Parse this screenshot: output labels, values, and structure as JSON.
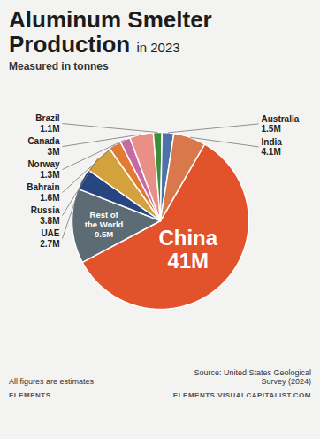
{
  "chart_data": {
    "type": "pie",
    "title": "Aluminum Smelter Production",
    "title_suffix": "in 2023",
    "subtitle": "Measured in tonnes",
    "categories": [
      "China",
      "Rest of the World",
      "UAE",
      "Russia",
      "Bahrain",
      "Norway",
      "Canada",
      "Brazil",
      "Australia",
      "India"
    ],
    "values": [
      41000000,
      9500000,
      2700000,
      3800000,
      1600000,
      1300000,
      3000000,
      1100000,
      1500000,
      4100000
    ],
    "value_labels": [
      "41M",
      "9.5M",
      "2.7M",
      "3.8M",
      "1.6M",
      "1.3M",
      "3M",
      "1.1M",
      "1.5M",
      "4.1M"
    ],
    "colors": [
      "#e2522b",
      "#5d6b75",
      "#27467f",
      "#d4a23c",
      "#e27a35",
      "#c56aa3",
      "#ea8f86",
      "#3d8d3b",
      "#4d72a8",
      "#d9784a"
    ],
    "data_labels": true,
    "tick_labels": false,
    "caption": "All figures are estimates",
    "source": "Source: United States Geological Survey (2024)",
    "brand": "ELEMENTS",
    "url": "ELEMENTS.VISUALCAPITALIST.COM"
  }
}
